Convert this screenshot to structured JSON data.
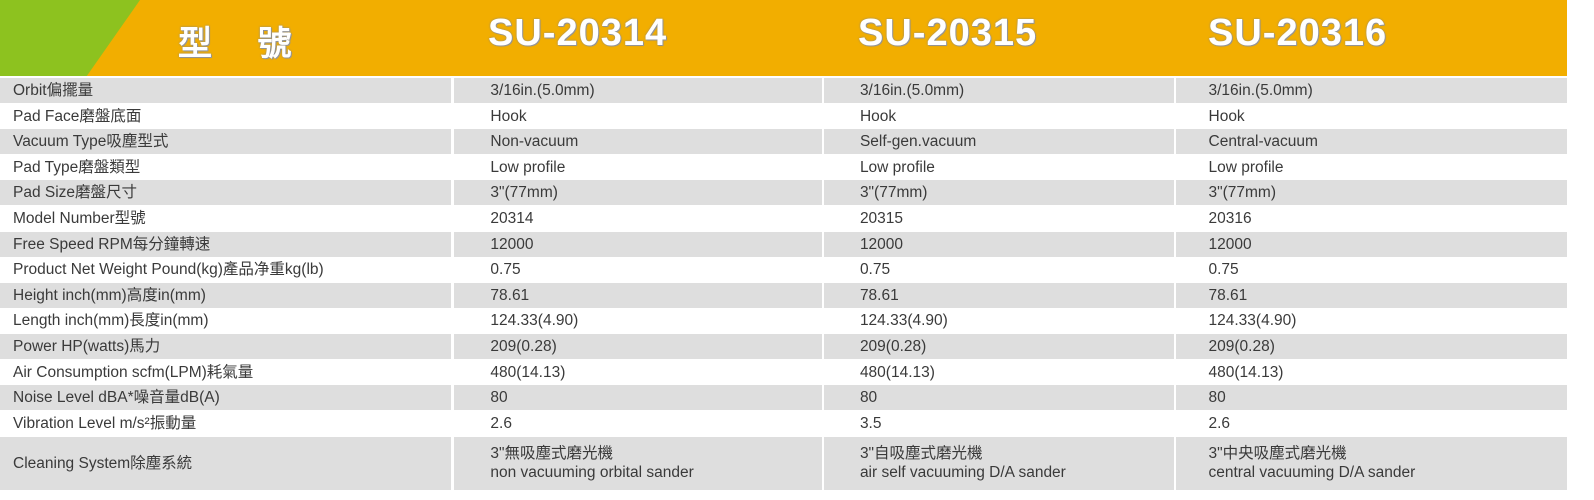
{
  "header": {
    "label": "型 號",
    "models": [
      "SU-20314",
      "SU-20315",
      "SU-20316"
    ]
  },
  "colors": {
    "header_orange": "#f2ae00",
    "header_green": "#8dc21f",
    "row_gray": "#dedede"
  },
  "rows": [
    {
      "label": "Orbit偏擺量",
      "values": [
        "3/16in.(5.0mm)",
        "3/16in.(5.0mm)",
        "3/16in.(5.0mm)"
      ]
    },
    {
      "label": "Pad Face磨盤底面",
      "values": [
        "Hook",
        "Hook",
        "Hook"
      ]
    },
    {
      "label": "Vacuum Type吸塵型式",
      "values": [
        "Non-vacuum",
        "Self-gen.vacuum",
        "Central-vacuum"
      ]
    },
    {
      "label": "Pad Type磨盤類型",
      "values": [
        "Low profile",
        "Low profile",
        "Low profile"
      ]
    },
    {
      "label": "Pad Size磨盤尺寸",
      "values": [
        "3\"(77mm)",
        "3\"(77mm)",
        "3\"(77mm)"
      ]
    },
    {
      "label": "Model Number型號",
      "values": [
        "20314",
        "20315",
        "20316"
      ]
    },
    {
      "label": "Free Speed RPM每分鐘轉速",
      "values": [
        "12000",
        "12000",
        "12000"
      ]
    },
    {
      "label": "Product Net Weight Pound(kg)產品净重kg(lb)",
      "values": [
        "0.75",
        "0.75",
        "0.75"
      ]
    },
    {
      "label": "Height inch(mm)高度in(mm)",
      "values": [
        "78.61",
        "78.61",
        "78.61"
      ]
    },
    {
      "label": "Length inch(mm)長度in(mm)",
      "values": [
        "124.33(4.90)",
        "124.33(4.90)",
        "124.33(4.90)"
      ]
    },
    {
      "label": "Power HP(watts)馬力",
      "values": [
        "209(0.28)",
        "209(0.28)",
        "209(0.28)"
      ]
    },
    {
      "label": "Air Consumption scfm(LPM)耗氣量",
      "values": [
        "480(14.13)",
        "480(14.13)",
        "480(14.13)"
      ]
    },
    {
      "label": "Noise Level dBA*噪音量dB(A)",
      "values": [
        "80",
        "80",
        "80"
      ]
    },
    {
      "label": "Vibration Level m/s²振動量",
      "values": [
        "2.6",
        "3.5",
        "2.6"
      ]
    }
  ],
  "cleaning": {
    "label": "Cleaning System除塵系統",
    "values": [
      {
        "zh": "3\"無吸塵式磨光機",
        "en": "non vacuuming orbital sander"
      },
      {
        "zh": "3\"自吸塵式磨光機",
        "en": "air self vacuuming D/A sander"
      },
      {
        "zh": "3\"中央吸塵式磨光機",
        "en": "central vacuuming D/A sander"
      }
    ]
  }
}
